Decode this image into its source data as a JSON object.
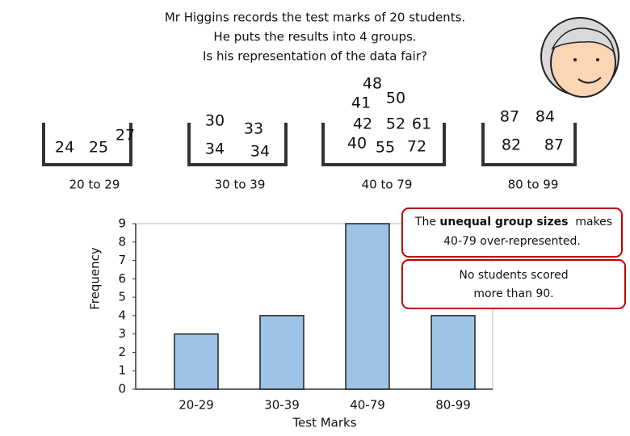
{
  "header": {
    "lines": [
      "Mr Higgins records the test marks of 20 students.",
      "He puts the results into 4 groups.",
      "Is his representation of the data fair?"
    ]
  },
  "groups": [
    {
      "marks": [
        24,
        25,
        27
      ],
      "label": "20 to 29"
    },
    {
      "marks": [
        30,
        34,
        33,
        34
      ],
      "label": "30 to 39"
    },
    {
      "marks": [
        48,
        41,
        50,
        42,
        52,
        61,
        40,
        55,
        72
      ],
      "label": "40 to 79"
    },
    {
      "marks": [
        87,
        84,
        82,
        87
      ],
      "label": "80 to 99"
    }
  ],
  "chart_data": {
    "type": "bar",
    "categories": [
      "20-29",
      "30-39",
      "40-79",
      "80-99"
    ],
    "values": [
      3,
      4,
      9,
      4
    ],
    "color": "#9dc3e6",
    "ylim": [
      0,
      9
    ],
    "yticks": [
      0,
      1,
      2,
      3,
      4,
      5,
      6,
      7,
      8,
      9
    ],
    "x_label": "Test Marks",
    "y_label": "Frequency"
  },
  "callouts": [
    {
      "parts": [
        "The ",
        "unequal group sizes",
        "  makes"
      ],
      "line2": "40-79 over-represented."
    },
    {
      "lines": [
        "No students scored",
        "more than 90."
      ]
    }
  ]
}
